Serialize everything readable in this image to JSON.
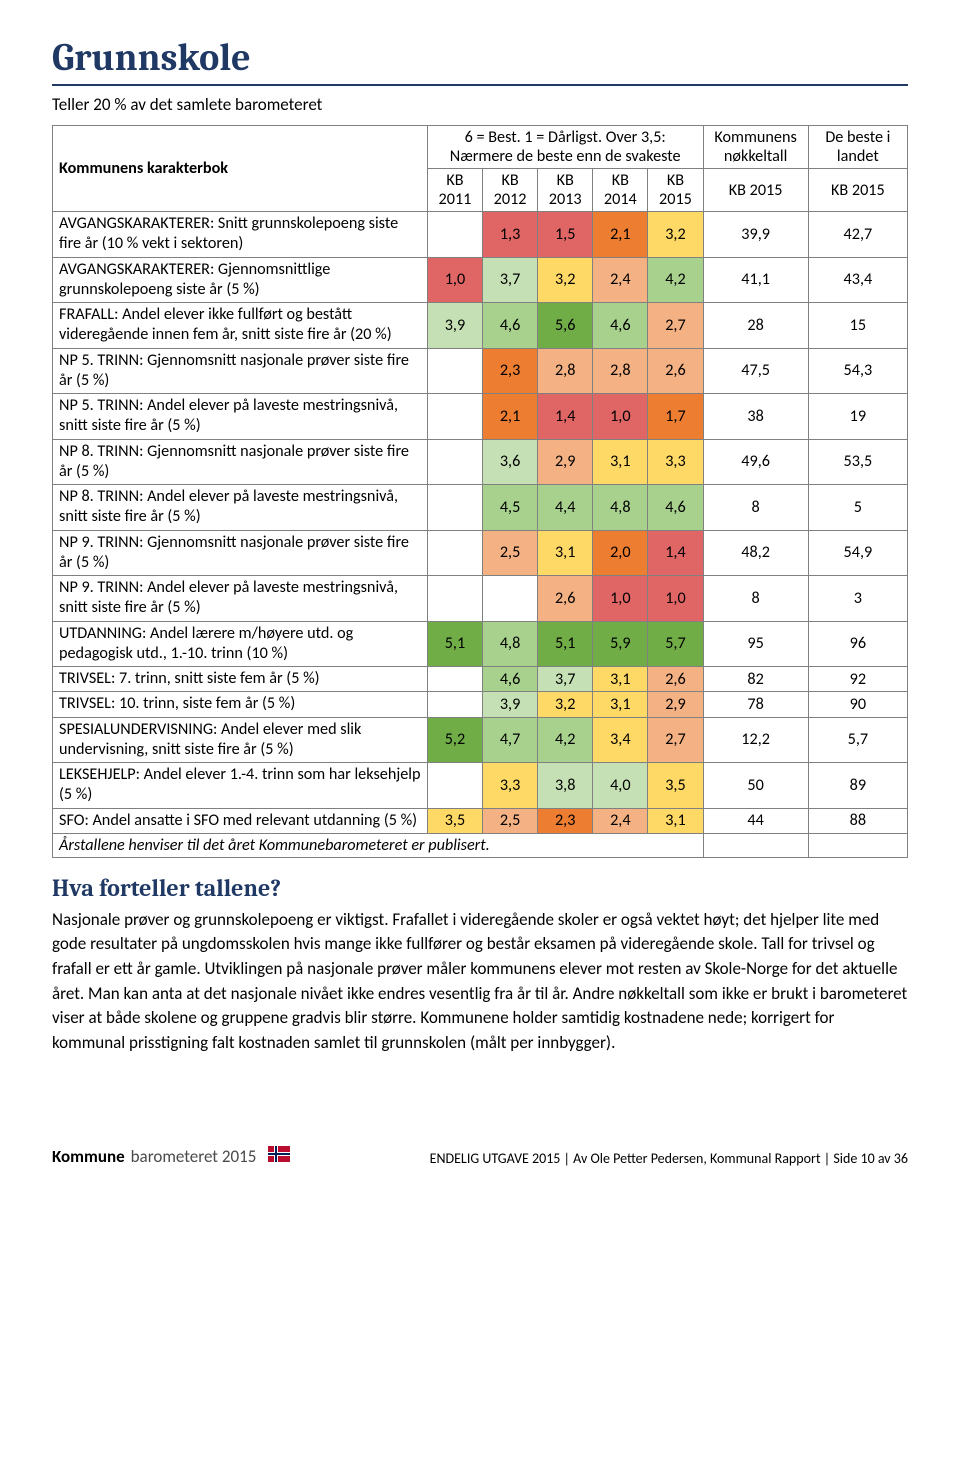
{
  "title": "Grunnskole",
  "subtitle": "Teller 20 % av det samlete barometeret",
  "table": {
    "row_header_label": "Kommunens karakterbok",
    "top_header_main": "6 = Best. 1 = Dårligst. Over 3,5: Nærmere de beste enn de svakeste",
    "top_header_col6": "Kommunens nøkkeltall",
    "top_header_col7": "De beste i landet",
    "sub_headers": [
      "KB 2011",
      "KB 2012",
      "KB 2013",
      "KB 2014",
      "KB 2015",
      "KB 2015",
      "KB 2015"
    ],
    "cell_colors": {
      "red": "#e06666",
      "orange": "#ed7d31",
      "lorange": "#f4b183",
      "yellow": "#ffd966",
      "lgreen": "#c5e0b4",
      "green": "#a9d18e",
      "dgreen": "#70ad47",
      "blank": "#ffffff"
    },
    "rows": [
      {
        "label": "AVGANGSKARAKTERER: Snitt grunnskole­poeng siste fire år (10 % vekt i sektoren)",
        "cells": [
          {
            "v": "",
            "c": "blank"
          },
          {
            "v": "1,3",
            "c": "red"
          },
          {
            "v": "1,5",
            "c": "red"
          },
          {
            "v": "2,1",
            "c": "orange"
          },
          {
            "v": "3,2",
            "c": "yellow"
          },
          {
            "v": "39,9",
            "c": "blank"
          },
          {
            "v": "42,7",
            "c": "blank"
          }
        ]
      },
      {
        "label": "AVGANGSKARAKTERER: Gjennomsnittlige grunnskolepoeng siste år (5 %)",
        "cells": [
          {
            "v": "1,0",
            "c": "red"
          },
          {
            "v": "3,7",
            "c": "lgreen"
          },
          {
            "v": "3,2",
            "c": "yellow"
          },
          {
            "v": "2,4",
            "c": "lorange"
          },
          {
            "v": "4,2",
            "c": "green"
          },
          {
            "v": "41,1",
            "c": "blank"
          },
          {
            "v": "43,4",
            "c": "blank"
          }
        ]
      },
      {
        "label": "FRAFALL: Andel elever ikke fullført og bestått videregående innen fem år, snitt siste fire år (20 %)",
        "cells": [
          {
            "v": "3,9",
            "c": "lgreen"
          },
          {
            "v": "4,6",
            "c": "green"
          },
          {
            "v": "5,6",
            "c": "dgreen"
          },
          {
            "v": "4,6",
            "c": "green"
          },
          {
            "v": "2,7",
            "c": "lorange"
          },
          {
            "v": "28",
            "c": "blank"
          },
          {
            "v": "15",
            "c": "blank"
          }
        ]
      },
      {
        "label": "NP 5. TRINN: Gjennomsnitt nasjonale prøver siste fire år (5 %)",
        "cells": [
          {
            "v": "",
            "c": "blank"
          },
          {
            "v": "2,3",
            "c": "orange"
          },
          {
            "v": "2,8",
            "c": "lorange"
          },
          {
            "v": "2,8",
            "c": "lorange"
          },
          {
            "v": "2,6",
            "c": "lorange"
          },
          {
            "v": "47,5",
            "c": "blank"
          },
          {
            "v": "54,3",
            "c": "blank"
          }
        ]
      },
      {
        "label": "NP 5. TRINN: Andel elever på laveste mestringsnivå, snitt siste fire år (5 %)",
        "cells": [
          {
            "v": "",
            "c": "blank"
          },
          {
            "v": "2,1",
            "c": "orange"
          },
          {
            "v": "1,4",
            "c": "red"
          },
          {
            "v": "1,0",
            "c": "red"
          },
          {
            "v": "1,7",
            "c": "orange"
          },
          {
            "v": "38",
            "c": "blank"
          },
          {
            "v": "19",
            "c": "blank"
          }
        ]
      },
      {
        "label": "NP 8. TRINN: Gjennomsnitt nasjonale prøver siste fire år (5 %)",
        "cells": [
          {
            "v": "",
            "c": "blank"
          },
          {
            "v": "3,6",
            "c": "lgreen"
          },
          {
            "v": "2,9",
            "c": "lorange"
          },
          {
            "v": "3,1",
            "c": "yellow"
          },
          {
            "v": "3,3",
            "c": "yellow"
          },
          {
            "v": "49,6",
            "c": "blank"
          },
          {
            "v": "53,5",
            "c": "blank"
          }
        ]
      },
      {
        "label": "NP 8. TRINN: Andel elever på laveste mestringsnivå, snitt siste fire år (5 %)",
        "cells": [
          {
            "v": "",
            "c": "blank"
          },
          {
            "v": "4,5",
            "c": "green"
          },
          {
            "v": "4,4",
            "c": "green"
          },
          {
            "v": "4,8",
            "c": "green"
          },
          {
            "v": "4,6",
            "c": "green"
          },
          {
            "v": "8",
            "c": "blank"
          },
          {
            "v": "5",
            "c": "blank"
          }
        ]
      },
      {
        "label": "NP 9. TRINN: Gjennomsnitt nasjonale prøver siste fire år (5 %)",
        "cells": [
          {
            "v": "",
            "c": "blank"
          },
          {
            "v": "2,5",
            "c": "lorange"
          },
          {
            "v": "3,1",
            "c": "yellow"
          },
          {
            "v": "2,0",
            "c": "orange"
          },
          {
            "v": "1,4",
            "c": "red"
          },
          {
            "v": "48,2",
            "c": "blank"
          },
          {
            "v": "54,9",
            "c": "blank"
          }
        ]
      },
      {
        "label": "NP 9. TRINN: Andel elever på laveste mestringsnivå, snitt siste fire år (5 %)",
        "cells": [
          {
            "v": "",
            "c": "blank"
          },
          {
            "v": "",
            "c": "blank"
          },
          {
            "v": "2,6",
            "c": "lorange"
          },
          {
            "v": "1,0",
            "c": "red"
          },
          {
            "v": "1,0",
            "c": "red"
          },
          {
            "v": "8",
            "c": "blank"
          },
          {
            "v": "3",
            "c": "blank"
          }
        ]
      },
      {
        "label": "UTDANNING: Andel lærere m/høyere utd. og pedagogisk utd., 1.-10. trinn (10 %)",
        "cells": [
          {
            "v": "5,1",
            "c": "dgreen"
          },
          {
            "v": "4,8",
            "c": "green"
          },
          {
            "v": "5,1",
            "c": "dgreen"
          },
          {
            "v": "5,9",
            "c": "dgreen"
          },
          {
            "v": "5,7",
            "c": "dgreen"
          },
          {
            "v": "95",
            "c": "blank"
          },
          {
            "v": "96",
            "c": "blank"
          }
        ]
      },
      {
        "label": "TRIVSEL: 7. trinn, snitt siste fem år (5 %)",
        "cells": [
          {
            "v": "",
            "c": "blank"
          },
          {
            "v": "4,6",
            "c": "green"
          },
          {
            "v": "3,7",
            "c": "lgreen"
          },
          {
            "v": "3,1",
            "c": "yellow"
          },
          {
            "v": "2,6",
            "c": "lorange"
          },
          {
            "v": "82",
            "c": "blank"
          },
          {
            "v": "92",
            "c": "blank"
          }
        ]
      },
      {
        "label": "TRIVSEL: 10. trinn, siste fem år (5 %)",
        "cells": [
          {
            "v": "",
            "c": "blank"
          },
          {
            "v": "3,9",
            "c": "lgreen"
          },
          {
            "v": "3,2",
            "c": "yellow"
          },
          {
            "v": "3,1",
            "c": "yellow"
          },
          {
            "v": "2,9",
            "c": "lorange"
          },
          {
            "v": "78",
            "c": "blank"
          },
          {
            "v": "90",
            "c": "blank"
          }
        ]
      },
      {
        "label": "SPESIALUNDERVISNING: Andel elever med slik undervisning, snitt siste fire år (5 %)",
        "cells": [
          {
            "v": "5,2",
            "c": "dgreen"
          },
          {
            "v": "4,7",
            "c": "green"
          },
          {
            "v": "4,2",
            "c": "green"
          },
          {
            "v": "3,4",
            "c": "yellow"
          },
          {
            "v": "2,7",
            "c": "lorange"
          },
          {
            "v": "12,2",
            "c": "blank"
          },
          {
            "v": "5,7",
            "c": "blank"
          }
        ]
      },
      {
        "label": "LEKSEHJELP: Andel elever 1.-4. trinn som har leksehjelp (5 %)",
        "cells": [
          {
            "v": "",
            "c": "blank"
          },
          {
            "v": "3,3",
            "c": "yellow"
          },
          {
            "v": "3,8",
            "c": "lgreen"
          },
          {
            "v": "4,0",
            "c": "lgreen"
          },
          {
            "v": "3,5",
            "c": "yellow"
          },
          {
            "v": "50",
            "c": "blank"
          },
          {
            "v": "89",
            "c": "blank"
          }
        ]
      },
      {
        "label": "SFO: Andel ansatte i SFO med relevant utdanning (5 %)",
        "cells": [
          {
            "v": "3,5",
            "c": "yellow"
          },
          {
            "v": "2,5",
            "c": "lorange"
          },
          {
            "v": "2,3",
            "c": "orange"
          },
          {
            "v": "2,4",
            "c": "lorange"
          },
          {
            "v": "3,1",
            "c": "yellow"
          },
          {
            "v": "44",
            "c": "blank"
          },
          {
            "v": "88",
            "c": "blank"
          }
        ]
      }
    ],
    "footnote": "Årstallene henviser til det året Kommunebarometeret er publisert."
  },
  "section_heading": "Hva forteller tallene?",
  "body_text": "Nasjonale prøver og grunnskolepoeng er viktigst. Frafallet i videregående skoler er også vektet høyt; det hjelper lite med gode resultater på ungdomsskolen hvis mange ikke fullfører og består eksamen på videregående skole. Tall for trivsel og frafall er ett år gamle. Utviklingen på nasjonale prøver måler kommunens elever mot resten av Skole-Norge for det aktuelle året. Man kan anta at det nasjonale nivået ikke endres vesentlig fra år til år. Andre nøkkeltall som ikke er brukt i barometeret viser at både skolene og gruppene gradvis blir større. Kommunene holder samtidig kostnadene nede; korrigert for kommunal prisstigning falt kostnaden samlet til grunnskolen (målt per innbygger).",
  "footer": {
    "logo_bold": "Kommune",
    "logo_light": "barometeret 2015",
    "credit": "ENDELIG UTGAVE 2015 | Av Ole Petter Pedersen, Kommunal Rapport | Side 10 av 36"
  }
}
